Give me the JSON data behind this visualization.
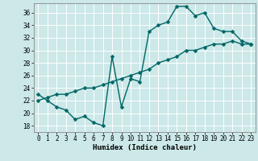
{
  "xlabel": "Humidex (Indice chaleur)",
  "bg_color": "#cce8e8",
  "grid_color": "#aadddd",
  "line_color": "#006666",
  "xlim": [
    -0.5,
    23.5
  ],
  "ylim": [
    17,
    37.5
  ],
  "yticks": [
    18,
    20,
    22,
    24,
    26,
    28,
    30,
    32,
    34,
    36
  ],
  "xticks": [
    0,
    1,
    2,
    3,
    4,
    5,
    6,
    7,
    8,
    9,
    10,
    11,
    12,
    13,
    14,
    15,
    16,
    17,
    18,
    19,
    20,
    21,
    22,
    23
  ],
  "line1_x": [
    0,
    1,
    2,
    3,
    4,
    5,
    6,
    7,
    8,
    9,
    10,
    11,
    12,
    13,
    14,
    15,
    16,
    17,
    18,
    19,
    20,
    21,
    22,
    23
  ],
  "line1_y": [
    23,
    22,
    21,
    20.5,
    19,
    19.5,
    18.5,
    18,
    29,
    21,
    25.5,
    25,
    33,
    34,
    34.5,
    37,
    37,
    35.5,
    36,
    33.5,
    33,
    33,
    31.5,
    31
  ],
  "line2_x": [
    0,
    1,
    2,
    3,
    4,
    5,
    6,
    7,
    8,
    9,
    10,
    11,
    12,
    13,
    14,
    15,
    16,
    17,
    18,
    19,
    20,
    21,
    22,
    23
  ],
  "line2_y": [
    22,
    22.5,
    23,
    23,
    23.5,
    24,
    24,
    24.5,
    25,
    25.5,
    26,
    26.5,
    27,
    28,
    28.5,
    29,
    30,
    30,
    30.5,
    31,
    31,
    31.5,
    31,
    31
  ],
  "markersize": 2.5,
  "linewidth": 1.0,
  "tick_fontsize": 5.5,
  "xlabel_fontsize": 6.5
}
